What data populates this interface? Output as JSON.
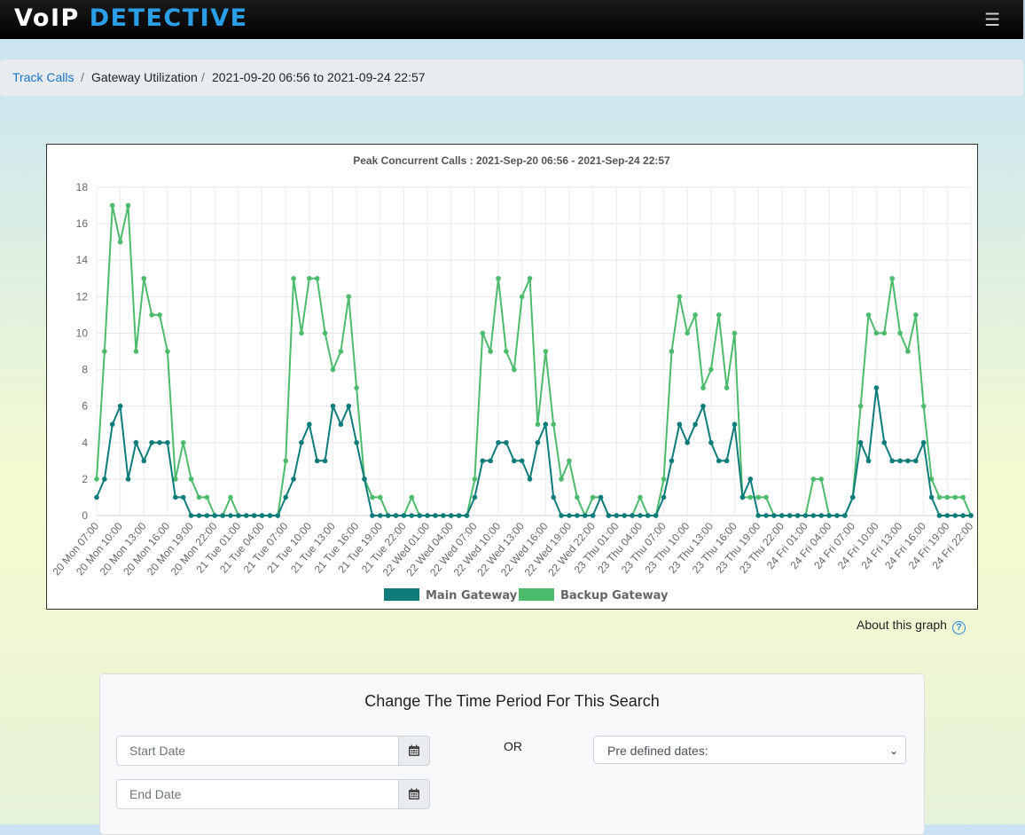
{
  "header": {
    "logo_part1": "VoIP",
    "logo_part2": "DETECTIVE",
    "menu_icon": "hamburger-icon"
  },
  "breadcrumb": {
    "items": [
      "Track Calls",
      "Gateway Utilization",
      "2021-09-20 06:56 to 2021-09-24 22:57"
    ],
    "separator": "/"
  },
  "chart_data": {
    "type": "line",
    "title": "Peak Concurrent Calls : 2021-Sep-20 06:56 - 2021-Sep-24 22:57",
    "xlabel": "",
    "ylabel": "",
    "ylim": [
      0,
      18
    ],
    "yticks": [
      0,
      2,
      4,
      6,
      8,
      10,
      12,
      14,
      16,
      18
    ],
    "grid": true,
    "legend_position": "bottom",
    "categories": [
      "20 Mon 07:00",
      "20 Mon 08:00",
      "20 Mon 09:00",
      "20 Mon 10:00",
      "20 Mon 11:00",
      "20 Mon 12:00",
      "20 Mon 13:00",
      "20 Mon 14:00",
      "20 Mon 15:00",
      "20 Mon 16:00",
      "20 Mon 17:00",
      "20 Mon 18:00",
      "20 Mon 19:00",
      "20 Mon 20:00",
      "20 Mon 21:00",
      "20 Mon 22:00",
      "20 Mon 23:00",
      "21 Tue 00:00",
      "21 Tue 01:00",
      "21 Tue 02:00",
      "21 Tue 03:00",
      "21 Tue 04:00",
      "21 Tue 05:00",
      "21 Tue 06:00",
      "21 Tue 07:00",
      "21 Tue 08:00",
      "21 Tue 09:00",
      "21 Tue 10:00",
      "21 Tue 11:00",
      "21 Tue 12:00",
      "21 Tue 13:00",
      "21 Tue 14:00",
      "21 Tue 15:00",
      "21 Tue 16:00",
      "21 Tue 17:00",
      "21 Tue 18:00",
      "21 Tue 19:00",
      "21 Tue 20:00",
      "21 Tue 21:00",
      "21 Tue 22:00",
      "21 Tue 23:00",
      "22 Wed 00:00",
      "22 Wed 01:00",
      "22 Wed 02:00",
      "22 Wed 03:00",
      "22 Wed 04:00",
      "22 Wed 05:00",
      "22 Wed 06:00",
      "22 Wed 07:00",
      "22 Wed 08:00",
      "22 Wed 09:00",
      "22 Wed 10:00",
      "22 Wed 11:00",
      "22 Wed 12:00",
      "22 Wed 13:00",
      "22 Wed 14:00",
      "22 Wed 15:00",
      "22 Wed 16:00",
      "22 Wed 17:00",
      "22 Wed 18:00",
      "22 Wed 19:00",
      "22 Wed 20:00",
      "22 Wed 21:00",
      "22 Wed 22:00",
      "22 Wed 23:00",
      "23 Thu 00:00",
      "23 Thu 01:00",
      "23 Thu 02:00",
      "23 Thu 03:00",
      "23 Thu 04:00",
      "23 Thu 05:00",
      "23 Thu 06:00",
      "23 Thu 07:00",
      "23 Thu 08:00",
      "23 Thu 09:00",
      "23 Thu 10:00",
      "23 Thu 11:00",
      "23 Thu 12:00",
      "23 Thu 13:00",
      "23 Thu 14:00",
      "23 Thu 15:00",
      "23 Thu 16:00",
      "23 Thu 17:00",
      "23 Thu 18:00",
      "23 Thu 19:00",
      "23 Thu 20:00",
      "23 Thu 21:00",
      "23 Thu 22:00",
      "23 Thu 23:00",
      "24 Fri 00:00",
      "24 Fri 01:00",
      "24 Fri 02:00",
      "24 Fri 03:00",
      "24 Fri 04:00",
      "24 Fri 05:00",
      "24 Fri 06:00",
      "24 Fri 07:00",
      "24 Fri 08:00",
      "24 Fri 09:00",
      "24 Fri 10:00",
      "24 Fri 11:00",
      "24 Fri 12:00",
      "24 Fri 13:00",
      "24 Fri 14:00",
      "24 Fri 15:00",
      "24 Fri 16:00",
      "24 Fri 17:00",
      "24 Fri 18:00",
      "24 Fri 19:00",
      "24 Fri 20:00",
      "24 Fri 21:00",
      "24 Fri 22:00"
    ],
    "tick_labels_shown": [
      "20 Mon 07:00",
      "20 Mon 10:00",
      "20 Mon 13:00",
      "20 Mon 16:00",
      "20 Mon 19:00",
      "20 Mon 22:00",
      "21 Tue 01:00",
      "21 Tue 04:00",
      "21 Tue 07:00",
      "21 Tue 10:00",
      "21 Tue 13:00",
      "21 Tue 16:00",
      "21 Tue 19:00",
      "21 Tue 22:00",
      "22 Wed 01:00",
      "22 Wed 04:00",
      "22 Wed 07:00",
      "22 Wed 10:00",
      "22 Wed 13:00",
      "22 Wed 16:00",
      "22 Wed 19:00",
      "22 Wed 22:00",
      "23 Thu 01:00",
      "23 Thu 04:00",
      "23 Thu 07:00",
      "23 Thu 10:00",
      "23 Thu 13:00",
      "23 Thu 16:00",
      "23 Thu 19:00",
      "23 Thu 22:00",
      "24 Fri 01:00",
      "24 Fri 04:00",
      "24 Fri 07:00",
      "24 Fri 10:00",
      "24 Fri 13:00",
      "24 Fri 16:00",
      "24 Fri 19:00",
      "24 Fri 22:00"
    ],
    "series": [
      {
        "name": "Main Gateway",
        "color": "#0e7c7b",
        "values": [
          1,
          2,
          5,
          6,
          2,
          4,
          3,
          4,
          4,
          4,
          1,
          1,
          0,
          0,
          0,
          0,
          0,
          0,
          0,
          0,
          0,
          0,
          0,
          0,
          1,
          2,
          4,
          5,
          3,
          3,
          6,
          5,
          6,
          4,
          2,
          0,
          0,
          0,
          0,
          0,
          0,
          0,
          0,
          0,
          0,
          0,
          0,
          0,
          1,
          3,
          3,
          4,
          4,
          3,
          3,
          2,
          4,
          5,
          1,
          0,
          0,
          0,
          0,
          0,
          1,
          0,
          0,
          0,
          0,
          0,
          0,
          0,
          1,
          3,
          5,
          4,
          5,
          6,
          4,
          3,
          3,
          5,
          1,
          2,
          0,
          0,
          0,
          0,
          0,
          0,
          0,
          0,
          0,
          0,
          0,
          0,
          1,
          4,
          3,
          7,
          4,
          3,
          3,
          3,
          3,
          4,
          1,
          0,
          0,
          0,
          0,
          0
        ]
      },
      {
        "name": "Backup Gateway",
        "color": "#4cbb6c",
        "values": [
          2,
          9,
          17,
          15,
          17,
          9,
          13,
          11,
          11,
          9,
          2,
          4,
          2,
          1,
          1,
          0,
          0,
          1,
          0,
          0,
          0,
          0,
          0,
          0,
          3,
          13,
          10,
          13,
          13,
          10,
          8,
          9,
          12,
          7,
          2,
          1,
          1,
          0,
          0,
          0,
          1,
          0,
          0,
          0,
          0,
          0,
          0,
          0,
          2,
          10,
          9,
          13,
          9,
          8,
          12,
          13,
          5,
          9,
          5,
          2,
          3,
          1,
          0,
          1,
          1,
          0,
          0,
          0,
          0,
          1,
          0,
          0,
          2,
          9,
          12,
          10,
          11,
          7,
          8,
          11,
          7,
          10,
          1,
          1,
          1,
          1,
          0,
          0,
          0,
          0,
          0,
          2,
          2,
          0,
          0,
          0,
          1,
          6,
          11,
          10,
          10,
          13,
          10,
          9,
          11,
          6,
          2,
          1,
          1,
          1,
          1,
          0
        ]
      }
    ]
  },
  "about": {
    "label": "About this graph",
    "icon": "question-circle-icon"
  },
  "search_panel": {
    "title": "Change The Time Period For This Search",
    "start_placeholder": "Start Date",
    "end_placeholder": "End Date",
    "or_label": "OR",
    "predefined_label": "Pre defined dates:"
  }
}
